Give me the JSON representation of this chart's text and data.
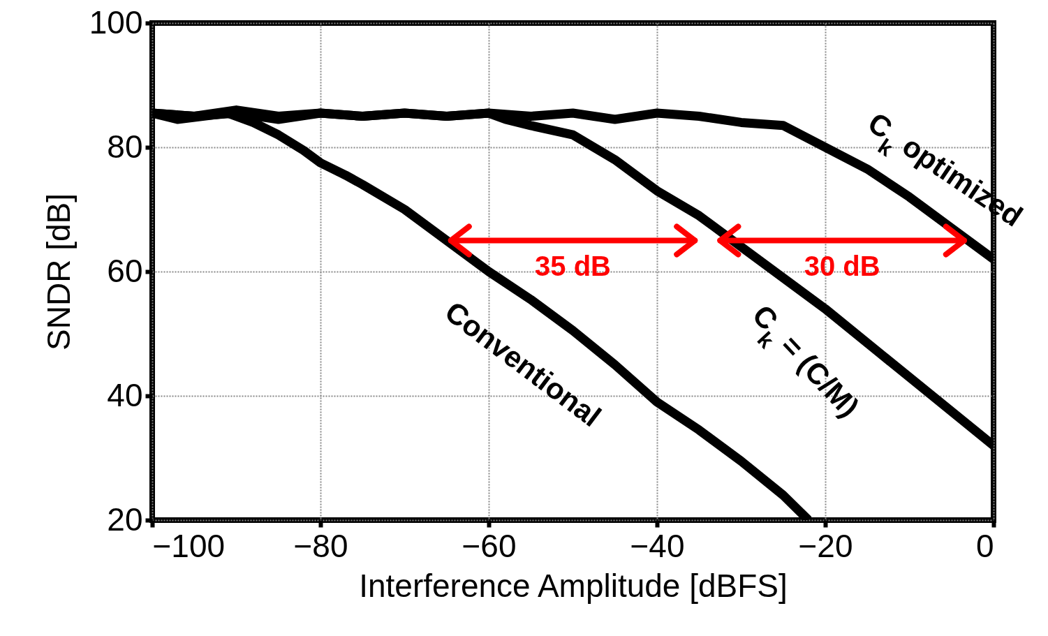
{
  "chart_data": {
    "type": "line",
    "xlabel": "Interference Amplitude [dBFS]",
    "ylabel": "SNDR [dB]",
    "xlim": [
      -100,
      0
    ],
    "ylim": [
      20,
      100
    ],
    "xticks": [
      -100,
      -80,
      -60,
      -40,
      -20,
      0
    ],
    "yticks": [
      20,
      40,
      60,
      80,
      100
    ],
    "grid": true,
    "legend": false,
    "marker": "none",
    "line_style": "solid",
    "series": [
      {
        "name": "Conventional",
        "color": "#000000",
        "x": [
          -100,
          -97,
          -94,
          -91,
          -88,
          -85,
          -82,
          -80,
          -77,
          -75,
          -70,
          -65,
          -60,
          -55,
          -50,
          -45,
          -40,
          -35,
          -30,
          -25,
          -22
        ],
        "values": [
          85.5,
          84.5,
          85,
          85.5,
          84,
          82,
          79.5,
          77.5,
          75.5,
          74,
          70,
          65,
          60,
          55.5,
          50.5,
          45,
          39,
          34.5,
          29.5,
          24,
          20
        ]
      },
      {
        "name": "C$_{k}$ = (C/M)",
        "color": "#000000",
        "x": [
          -100,
          -95,
          -90,
          -85,
          -80,
          -75,
          -70,
          -65,
          -60,
          -58,
          -55,
          -50,
          -45,
          -40,
          -35,
          -30,
          -25,
          -20,
          -10,
          0
        ],
        "values": [
          85.5,
          85,
          85.5,
          84.5,
          85.5,
          85,
          85.5,
          85,
          85.5,
          84.5,
          83.5,
          82,
          78,
          73,
          69,
          64,
          59,
          54,
          43,
          32
        ]
      },
      {
        "name": "C$_{k}$ optimized",
        "color": "#000000",
        "x": [
          -100,
          -95,
          -90,
          -85,
          -80,
          -75,
          -70,
          -65,
          -60,
          -55,
          -50,
          -45,
          -40,
          -35,
          -30,
          -25,
          -20,
          -15,
          -10,
          -5,
          0
        ],
        "values": [
          85.5,
          85,
          86,
          85,
          85.5,
          85,
          85.5,
          85,
          85.5,
          85,
          85.5,
          84.5,
          85.5,
          85,
          84,
          83.5,
          80,
          76.5,
          72,
          67,
          62
        ]
      }
    ],
    "annotations": [
      "35 dB",
      "30 dB"
    ]
  }
}
